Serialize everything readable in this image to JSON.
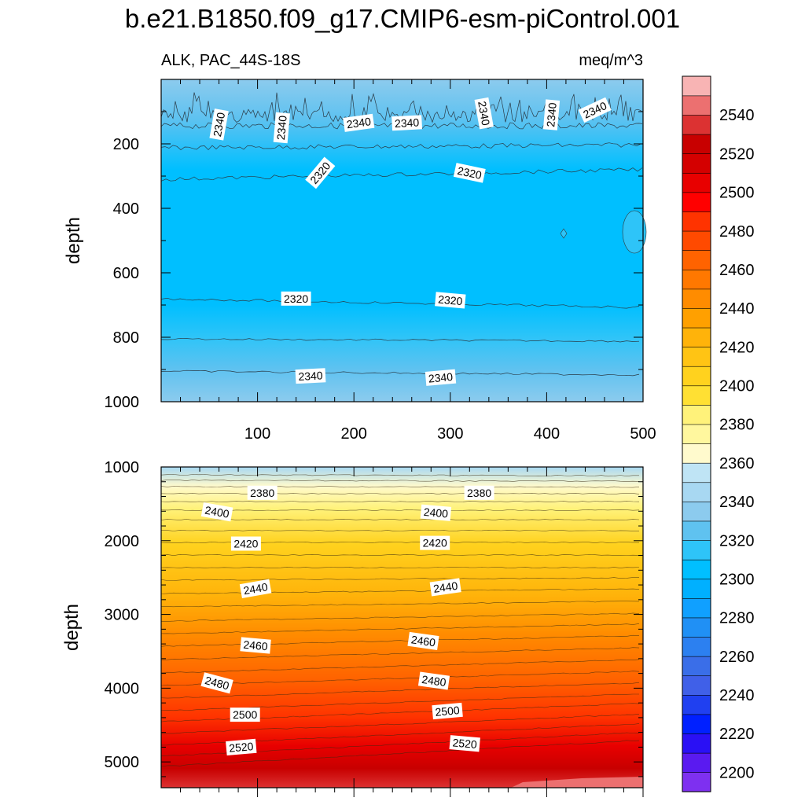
{
  "chart_data": {
    "type": "contour",
    "title": "b.e21.B1850.f09_g17.CMIP6-esm-piControl.001",
    "variable_label": "ALK, PAC_44S-18S",
    "units_label": "meq/m^3",
    "ylabel": "depth",
    "colorbar": {
      "levels": [
        2200,
        2210,
        2220,
        2230,
        2240,
        2250,
        2260,
        2270,
        2280,
        2290,
        2300,
        2310,
        2320,
        2330,
        2340,
        2350,
        2360,
        2370,
        2380,
        2390,
        2400,
        2410,
        2420,
        2430,
        2440,
        2450,
        2460,
        2470,
        2480,
        2490,
        2500,
        2510,
        2520,
        2530,
        2540,
        2550
      ],
      "tick_labels": [
        "2200",
        "2220",
        "2240",
        "2260",
        "2280",
        "2300",
        "2320",
        "2340",
        "2360",
        "2380",
        "2400",
        "2420",
        "2440",
        "2460",
        "2480",
        "2500",
        "2520",
        "2540"
      ],
      "colors": [
        "#7e30f0",
        "#5a1af0",
        "#2a10f5",
        "#0020ff",
        "#2040f0",
        "#4060e8",
        "#3a6ee8",
        "#2c80f0",
        "#2090f5",
        "#10a0ff",
        "#00b0ff",
        "#00bfff",
        "#2ec4f8",
        "#5fc2f0",
        "#8ccbee",
        "#a8d8f2",
        "#bfe4f5",
        "#fffacd",
        "#fff79e",
        "#fff27a",
        "#ffe033",
        "#ffd21e",
        "#ffc414",
        "#ffb30a",
        "#ffa000",
        "#ff8c00",
        "#ff7800",
        "#ff6300",
        "#ff4a00",
        "#ff3300",
        "#ff0000",
        "#e80000",
        "#d40000",
        "#c80000",
        "#dc3232",
        "#ec7070",
        "#f8b4b4"
      ]
    },
    "upper_panel": {
      "ylim": [
        1000,
        0
      ],
      "yticks": [
        "200",
        "400",
        "600",
        "800",
        "1000"
      ],
      "xlim": [
        0,
        500
      ],
      "xticks": [
        "100",
        "200",
        "300",
        "400",
        "500"
      ],
      "contour_labels": [
        {
          "text": "2340",
          "x": 60,
          "y": 140,
          "rot": -80
        },
        {
          "text": "2340",
          "x": 125,
          "y": 150,
          "rot": -85
        },
        {
          "text": "2340",
          "x": 205,
          "y": 135,
          "rot": -8
        },
        {
          "text": "2340",
          "x": 255,
          "y": 135,
          "rot": -3
        },
        {
          "text": "2340",
          "x": 335,
          "y": 105,
          "rot": 80
        },
        {
          "text": "2340",
          "x": 405,
          "y": 110,
          "rot": -85
        },
        {
          "text": "2340",
          "x": 450,
          "y": 95,
          "rot": -25
        },
        {
          "text": "2320",
          "x": 165,
          "y": 290,
          "rot": -50
        },
        {
          "text": "2320",
          "x": 320,
          "y": 290,
          "rot": 12
        },
        {
          "text": "2320",
          "x": 140,
          "y": 680,
          "rot": 0
        },
        {
          "text": "2320",
          "x": 300,
          "y": 685,
          "rot": 5
        },
        {
          "text": "2340",
          "x": 155,
          "y": 920,
          "rot": -3
        },
        {
          "text": "2340",
          "x": 290,
          "y": 925,
          "rot": -5
        }
      ]
    },
    "lower_panel": {
      "ylim": [
        5350,
        1000
      ],
      "yticks": [
        "1000",
        "2000",
        "3000",
        "4000",
        "5000"
      ],
      "xlim": [
        0,
        500
      ],
      "contour_labels": [
        {
          "text": "2380",
          "x": 105,
          "y": 1350,
          "rot": 0
        },
        {
          "text": "2380",
          "x": 330,
          "y": 1350,
          "rot": 0
        },
        {
          "text": "2400",
          "x": 58,
          "y": 1610,
          "rot": 10
        },
        {
          "text": "2400",
          "x": 285,
          "y": 1620,
          "rot": 5
        },
        {
          "text": "2420",
          "x": 88,
          "y": 2040,
          "rot": 0
        },
        {
          "text": "2420",
          "x": 284,
          "y": 2030,
          "rot": 0
        },
        {
          "text": "2440",
          "x": 98,
          "y": 2650,
          "rot": -10
        },
        {
          "text": "2440",
          "x": 295,
          "y": 2630,
          "rot": -8
        },
        {
          "text": "2460",
          "x": 98,
          "y": 3420,
          "rot": 5
        },
        {
          "text": "2460",
          "x": 272,
          "y": 3360,
          "rot": 8
        },
        {
          "text": "2480",
          "x": 58,
          "y": 3930,
          "rot": 15
        },
        {
          "text": "2480",
          "x": 283,
          "y": 3900,
          "rot": 8
        },
        {
          "text": "2500",
          "x": 87,
          "y": 4360,
          "rot": 0
        },
        {
          "text": "2500",
          "x": 297,
          "y": 4310,
          "rot": -5
        },
        {
          "text": "2520",
          "x": 83,
          "y": 4800,
          "rot": -5
        },
        {
          "text": "2520",
          "x": 315,
          "y": 4750,
          "rot": 5
        }
      ]
    }
  }
}
